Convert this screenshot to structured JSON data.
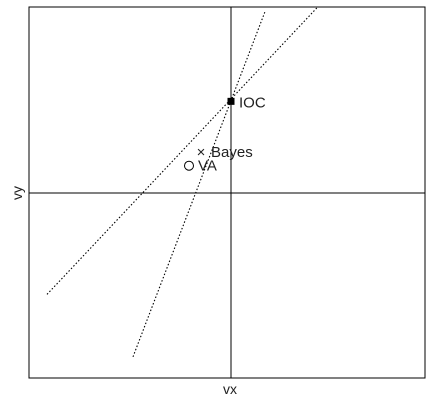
{
  "axes": {
    "x_label": "vx",
    "y_label": "vy"
  },
  "points": {
    "ioc": {
      "label": "IOC",
      "vx": 0,
      "vy": 0.47
    },
    "bayes": {
      "label": "Bayes",
      "vx": -0.15,
      "vy": 0.21
    },
    "va": {
      "label": "VA",
      "vx": -0.21,
      "vy": 0.14
    }
  },
  "constraint_lines": [
    {
      "name": "constraint-line-steep",
      "from": [
        -0.49,
        -0.84
      ],
      "to": [
        0.17,
        0.93
      ]
    },
    {
      "name": "constraint-line-shallow",
      "from": [
        -0.92,
        -0.52
      ],
      "to": [
        0.43,
        0.95
      ]
    }
  ],
  "frame": {
    "xlim": [
      -1,
      1
    ],
    "ylim": [
      -0.95,
      0.95
    ]
  }
}
